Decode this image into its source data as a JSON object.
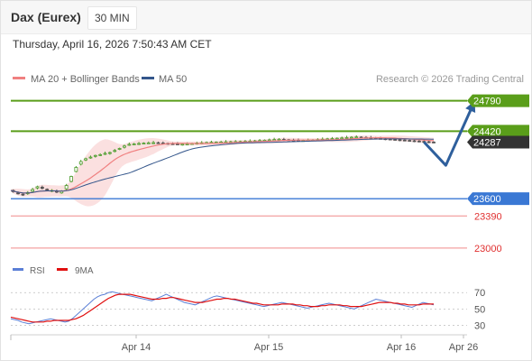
{
  "header": {
    "instrument": "Dax (Eurex)",
    "timeframe": "30 MIN"
  },
  "timestamp": "Thursday, April 16, 2026 7:50:43 AM CET",
  "legend": {
    "ma20_label": "MA 20 + Bollinger Bands",
    "ma50_label": "MA 50",
    "ma20_color": "#f08080",
    "ma50_color": "#34568b"
  },
  "copyright": "Research © 2026 Trading Central",
  "colors": {
    "resistance": "#5a9e1a",
    "pivot": "#3a78d4",
    "support": "#f08a8a",
    "price_tag": "#333333",
    "arrow": "#2e5f9c",
    "candle_up": "#4a9a2a",
    "candle_down": "#555555",
    "bollinger_fill": "#fbe0e0",
    "rsi": "#5b7fd6",
    "rsi_ma": "#e01010"
  },
  "chart_data": [
    {
      "type": "candlestick",
      "title": "",
      "x_ticks": [
        "Apr 14",
        "Apr 15",
        "Apr 16",
        "Apr 26"
      ],
      "ylim": [
        22900,
        24950
      ],
      "levels": [
        {
          "value": 24790,
          "label": "24790",
          "kind": "resistance"
        },
        {
          "value": 24420,
          "label": "24420",
          "kind": "resistance"
        },
        {
          "value": 24287,
          "label": "24287",
          "kind": "last_price"
        },
        {
          "value": 23600,
          "label": "23600",
          "kind": "pivot"
        },
        {
          "value": 23390,
          "label": "23390",
          "kind": "support"
        },
        {
          "value": 23000,
          "label": "23000",
          "kind": "support"
        }
      ],
      "series_close": [
        23700,
        23685,
        23670,
        23660,
        23655,
        23650,
        23660,
        23675,
        23690,
        23710,
        23730,
        23745,
        23740,
        23725,
        23715,
        23705,
        23695,
        23700,
        23690,
        23680,
        23670,
        23690,
        23720,
        23760,
        23810,
        23870,
        23930,
        23980,
        24020,
        24050,
        24070,
        24085,
        24095,
        24105,
        24115,
        24125,
        24130,
        24135,
        24140,
        24150,
        24150,
        24160,
        24175,
        24185,
        24200,
        24210,
        24225,
        24240,
        24255,
        24260,
        24262,
        24265,
        24268,
        24270,
        24272,
        24275,
        24276,
        24278,
        24278,
        24280,
        24280,
        24278,
        24276,
        24275,
        24272,
        24270,
        24268,
        24266,
        24265,
        24262,
        24260,
        24262,
        24263,
        24265,
        24268,
        24270,
        24273,
        24275,
        24276,
        24278,
        24280,
        24282,
        24283,
        24285,
        24285,
        24286,
        24287,
        24288,
        24289,
        24290,
        24290,
        24291,
        24292,
        24293,
        24294,
        24295,
        24296,
        24297,
        24298,
        24299,
        24300,
        24302,
        24304,
        24306,
        24308,
        24310,
        24312,
        24314,
        24316,
        24318,
        24320,
        24322,
        24320,
        24318,
        24316,
        24314,
        24312,
        24310,
        24308,
        24306,
        24305,
        24306,
        24308,
        24310,
        24312,
        24314,
        24316,
        24318,
        24320,
        24322,
        24324,
        24326,
        24328,
        24330,
        24332,
        24334,
        24336,
        24338,
        24340,
        24342,
        24344,
        24346,
        24348,
        24350,
        24348,
        24346,
        24344,
        24342,
        24340,
        24338,
        24336,
        24334,
        24332,
        24330,
        24328,
        24326,
        24324,
        24322,
        24320,
        24318,
        24316,
        24314,
        24312,
        24310,
        24308,
        24306,
        24304,
        24302,
        24300,
        24298,
        24296,
        24294,
        24292,
        24290,
        24288,
        24287
      ],
      "projection": [
        {
          "x_index": 171,
          "value": 24287
        },
        {
          "x_index": 180,
          "value": 24005
        },
        {
          "x_index": 192,
          "value": 24790
        }
      ]
    },
    {
      "type": "line",
      "title": "",
      "legend": [
        "RSI",
        "9MA"
      ],
      "y_ticks": [
        30,
        50,
        70
      ],
      "ylim": [
        25,
        78
      ],
      "series": [
        {
          "name": "RSI",
          "values": [
            38,
            37,
            36,
            34,
            33,
            32,
            33,
            34,
            35,
            36,
            37,
            38,
            37,
            36,
            35,
            34,
            35,
            38,
            42,
            46,
            50,
            54,
            58,
            62,
            65,
            67,
            68,
            70,
            71,
            70,
            69,
            68,
            67,
            66,
            65,
            64,
            63,
            62,
            61,
            60,
            62,
            64,
            66,
            68,
            66,
            64,
            62,
            60,
            58,
            57,
            56,
            55,
            57,
            59,
            61,
            63,
            65,
            66,
            65,
            64,
            63,
            62,
            61,
            60,
            59,
            58,
            57,
            56,
            55,
            54,
            53,
            54,
            55,
            56,
            57,
            58,
            57,
            56,
            55,
            54,
            53,
            52,
            51,
            52,
            53,
            54,
            55,
            56,
            57,
            56,
            55,
            54,
            53,
            52,
            51,
            50,
            52,
            54,
            56,
            58,
            60,
            62,
            61,
            60,
            59,
            58,
            57,
            56,
            55,
            54,
            53,
            52,
            54,
            56,
            58,
            57,
            56,
            55
          ]
        },
        {
          "name": "9MA",
          "values": [
            40,
            39,
            38,
            37,
            36,
            35,
            34,
            34,
            34,
            34,
            35,
            35,
            36,
            36,
            36,
            36,
            36,
            37,
            38,
            40,
            42,
            45,
            48,
            51,
            54,
            57,
            60,
            63,
            65,
            67,
            68,
            68,
            68,
            68,
            67,
            66,
            65,
            64,
            63,
            62,
            62,
            62,
            63,
            63,
            64,
            64,
            63,
            62,
            61,
            60,
            59,
            58,
            58,
            58,
            59,
            60,
            61,
            62,
            62,
            63,
            63,
            62,
            62,
            61,
            60,
            59,
            58,
            57,
            57,
            56,
            55,
            55,
            55,
            55,
            55,
            56,
            56,
            56,
            56,
            55,
            55,
            54,
            54,
            53,
            53,
            53,
            54,
            54,
            55,
            55,
            55,
            55,
            54,
            54,
            53,
            53,
            53,
            53,
            54,
            55,
            56,
            57,
            58,
            58,
            58,
            58,
            57,
            57,
            56,
            56,
            55,
            55,
            55,
            55,
            56,
            56,
            56,
            56
          ]
        }
      ]
    }
  ]
}
